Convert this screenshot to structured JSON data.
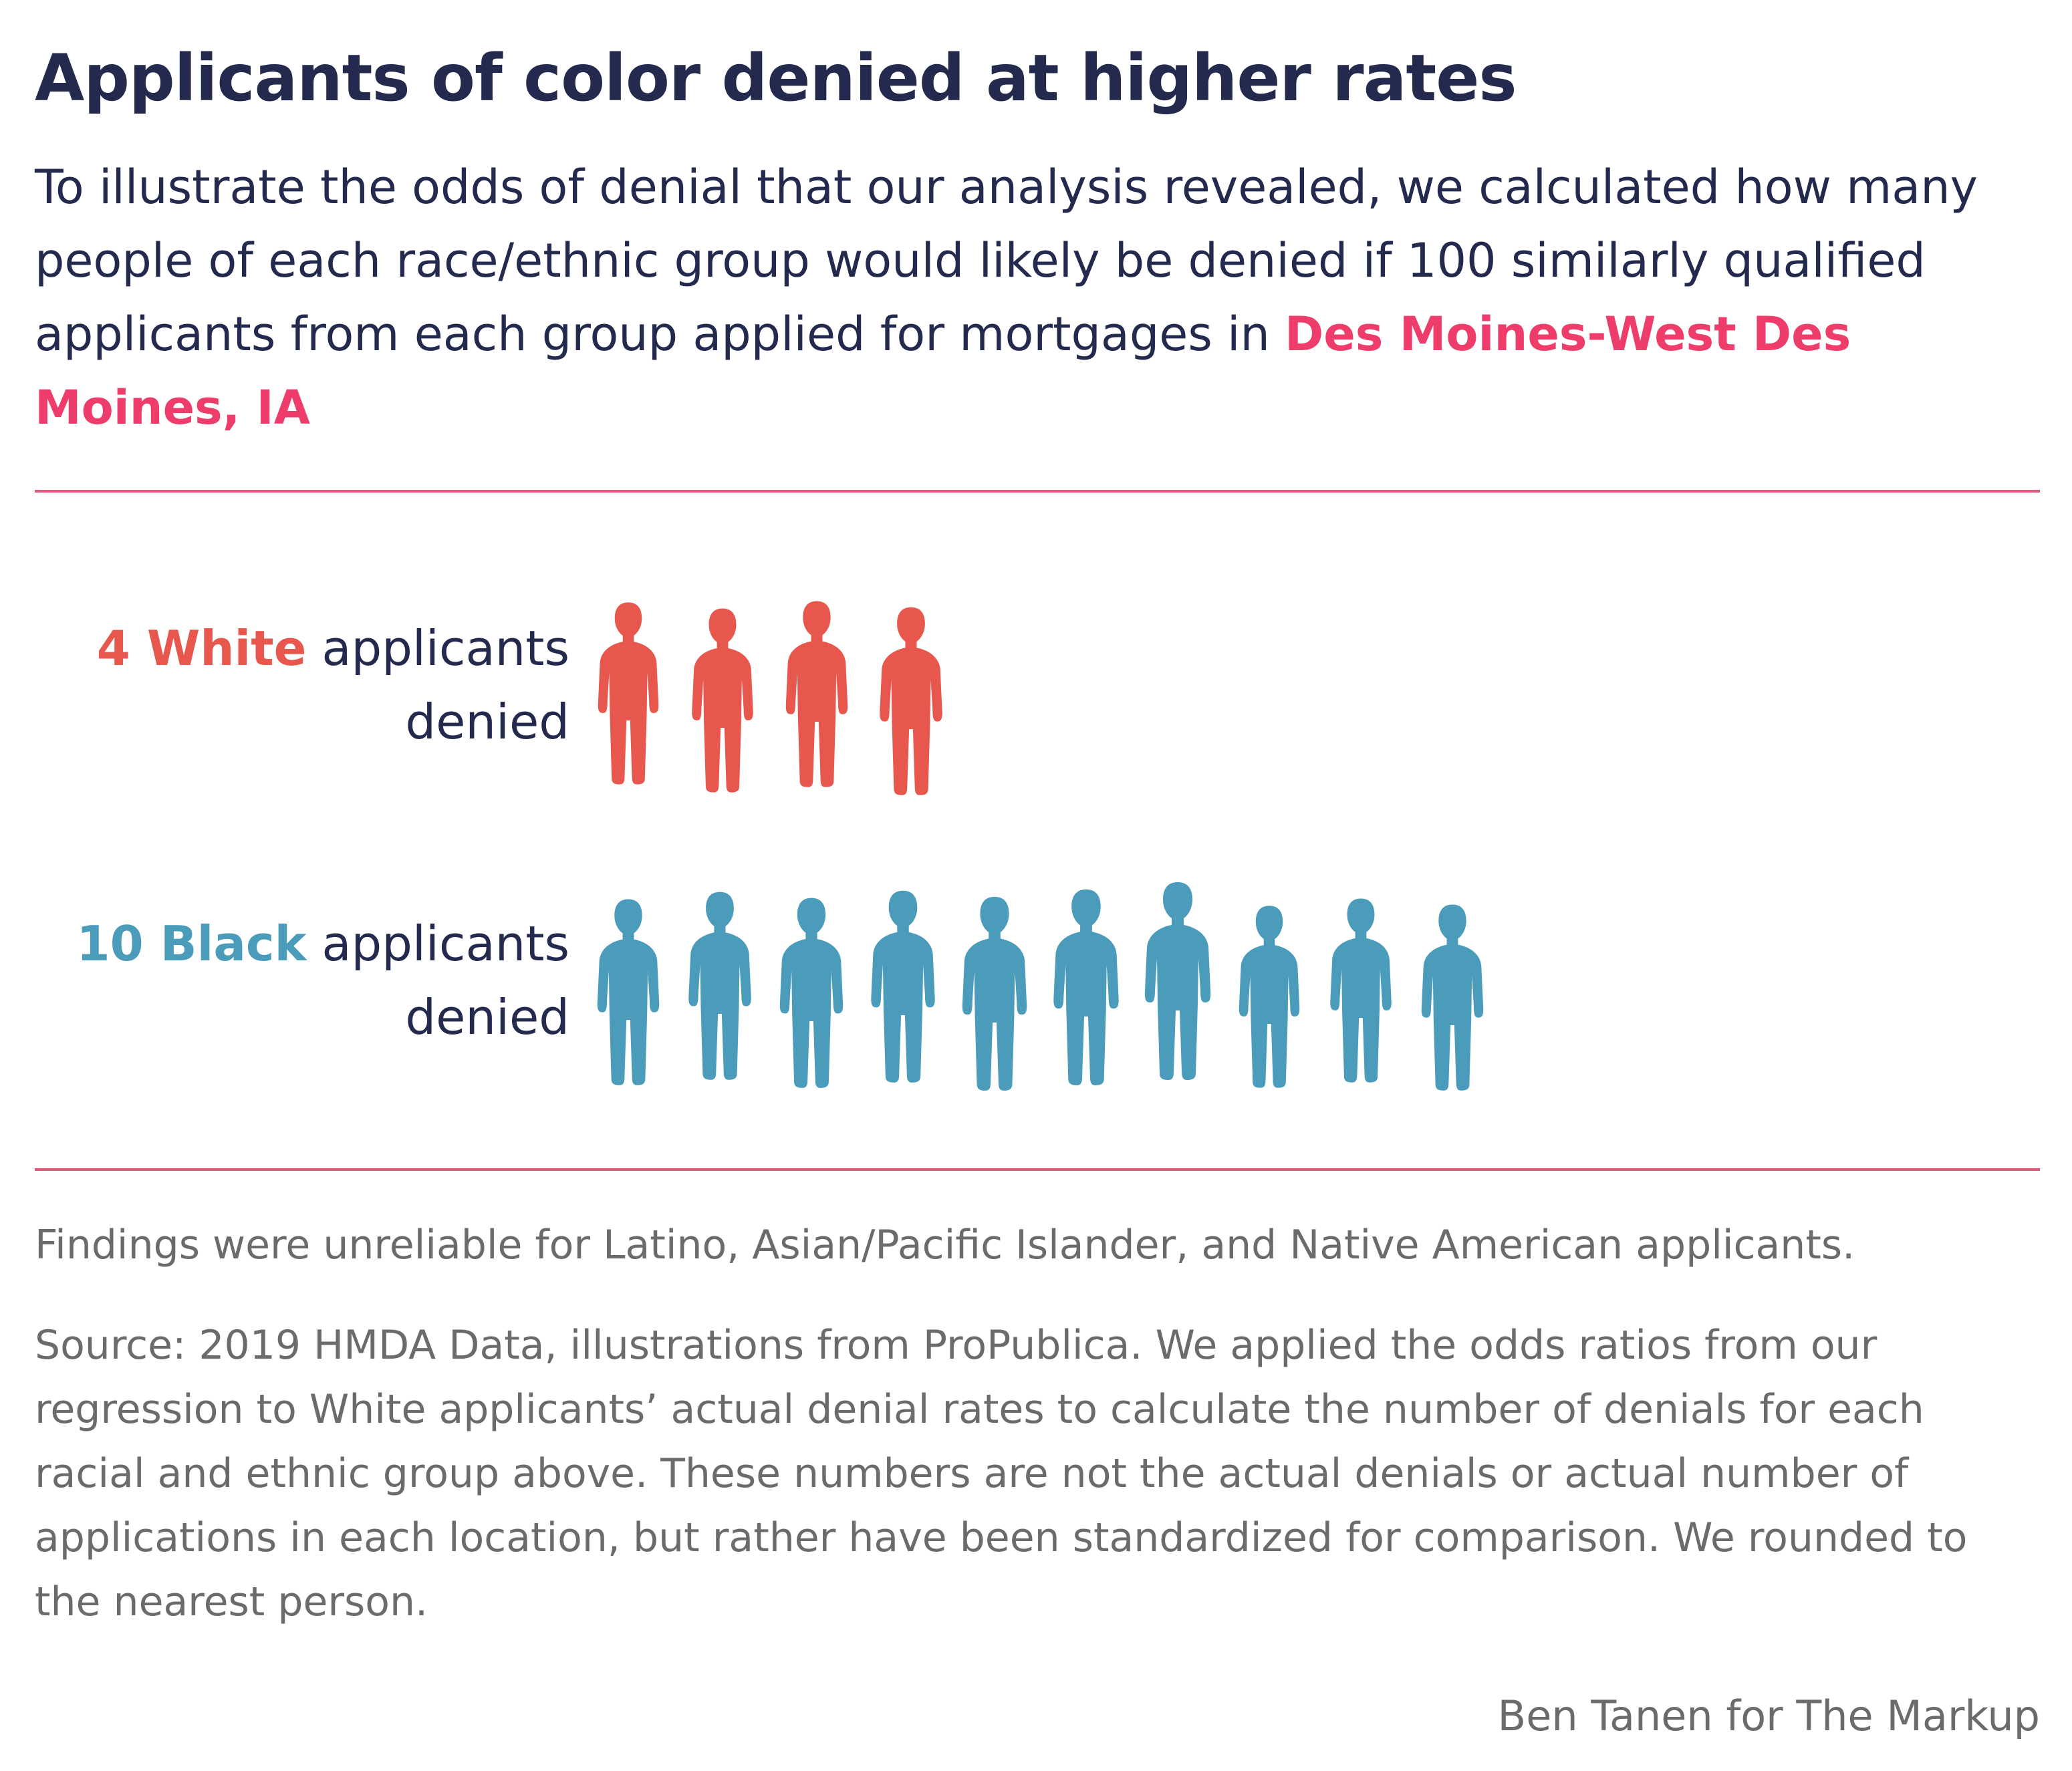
{
  "title": "Applicants of color denied at higher rates",
  "subtitle": {
    "text": "To illustrate the odds of denial that our analysis revealed, we calculated how many people of each race/ethnic group would likely be denied if 100 similarly qualified applicants from each group applied for mortgages in",
    "location": "Des Moines-West Des Moines, IA"
  },
  "colors": {
    "white_group": "#e8574d",
    "black_group": "#4a9cba",
    "accent": "#ee3c6b",
    "rule": "#e25877",
    "text_dark": "#232a4d",
    "text_muted": "#6b6b6b"
  },
  "chart_data": {
    "type": "pictogram",
    "unit": "applicants denied per 100 similarly qualified applicants",
    "rows": [
      {
        "count": 4,
        "group": "White",
        "count_label": "4",
        "group_label": "White",
        "suffix_1": "applicants",
        "suffix_2": "denied",
        "color": "#e8574d"
      },
      {
        "count": 10,
        "group": "Black",
        "count_label": "10",
        "group_label": "Black",
        "suffix_1": "applicants",
        "suffix_2": "denied",
        "color": "#4a9cba"
      }
    ]
  },
  "note": "Findings were unreliable for Latino, Asian/Pacific Islander, and Native American applicants.",
  "source": "Source: 2019 HMDA Data, illustrations from ProPublica. We applied the odds ratios from our regression to White applicants’ actual denial rates to calculate the number of denials for each racial and ethnic group above. These numbers are not the actual denials or actual number of applications in each location, but rather have been standardized for comparison. We rounded to the nearest person.",
  "credit": "Ben Tanen for The Markup"
}
